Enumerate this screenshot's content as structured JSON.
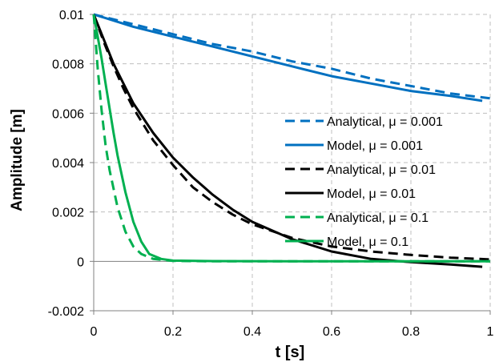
{
  "chart_data": {
    "type": "line",
    "xlabel": "t [s]",
    "ylabel": "Amplitude [m]",
    "xlim": [
      0,
      1
    ],
    "ylim": [
      -0.002,
      0.01
    ],
    "x_ticks": [
      0,
      0.2,
      0.4,
      0.6,
      0.8,
      1
    ],
    "x_tick_labels": [
      "0",
      "0.2",
      "0.4",
      "0.6",
      "0.8",
      "1"
    ],
    "y_ticks": [
      -0.002,
      0,
      0.002,
      0.004,
      0.006,
      0.008,
      0.01
    ],
    "y_tick_labels": [
      "-0.002",
      "0",
      "0.002",
      "0.004",
      "0.006",
      "0.008",
      "0.01"
    ],
    "grid": true,
    "legend_position": "right",
    "series": [
      {
        "name": "Analytical, μ = 0.001",
        "color": "#0070C0",
        "style": "dashed",
        "x": [
          0,
          0.1,
          0.2,
          0.3,
          0.4,
          0.5,
          0.6,
          0.7,
          0.8,
          0.9,
          1.0
        ],
        "y": [
          0.01,
          0.0096,
          0.0092,
          0.0088,
          0.0085,
          0.0081,
          0.0078,
          0.0074,
          0.0071,
          0.0068,
          0.0066
        ]
      },
      {
        "name": "Model, μ = 0.001",
        "color": "#0070C0",
        "style": "solid",
        "x": [
          0,
          0.1,
          0.2,
          0.3,
          0.4,
          0.5,
          0.6,
          0.7,
          0.8,
          0.9,
          0.98
        ],
        "y": [
          0.01,
          0.0095,
          0.0091,
          0.0087,
          0.0083,
          0.0079,
          0.0075,
          0.0072,
          0.0069,
          0.0067,
          0.0065
        ]
      },
      {
        "name": "Analytical, μ = 0.01",
        "color": "#000000",
        "style": "dashed",
        "x": [
          0,
          0.025,
          0.05,
          0.075,
          0.1,
          0.15,
          0.2,
          0.25,
          0.3,
          0.35,
          0.4,
          0.5,
          0.6,
          0.7,
          0.8,
          0.9,
          1.0
        ],
        "y": [
          0.01,
          0.0089,
          0.0079,
          0.007,
          0.0062,
          0.0049,
          0.0039,
          0.003,
          0.0024,
          0.0019,
          0.0015,
          0.00095,
          0.0006,
          0.0004,
          0.00026,
          0.00015,
          8e-05
        ]
      },
      {
        "name": "Model, μ = 0.01",
        "color": "#000000",
        "style": "solid",
        "x": [
          0,
          0.025,
          0.05,
          0.075,
          0.1,
          0.15,
          0.2,
          0.25,
          0.3,
          0.35,
          0.4,
          0.5,
          0.6,
          0.7,
          0.8,
          0.9,
          0.98
        ],
        "y": [
          0.01,
          0.009,
          0.008,
          0.0072,
          0.0064,
          0.0052,
          0.0042,
          0.0034,
          0.0027,
          0.0021,
          0.0016,
          0.0009,
          0.0004,
          0.0001,
          -3e-05,
          -0.00013,
          -0.00022
        ]
      },
      {
        "name": "Analytical, μ = 0.1",
        "color": "#00B050",
        "style": "dashed",
        "x": [
          0,
          0.01,
          0.02,
          0.03,
          0.04,
          0.06,
          0.08,
          0.1,
          0.12,
          0.15,
          0.2,
          0.3,
          0.5,
          0.7,
          1.0
        ],
        "y": [
          0.01,
          0.0078,
          0.0061,
          0.0047,
          0.0037,
          0.0022,
          0.0012,
          0.0006,
          0.0003,
          0.0001,
          2e-05,
          0.0,
          0.0,
          0.0,
          0.0
        ]
      },
      {
        "name": "Model, μ = 0.1",
        "color": "#00B050",
        "style": "solid",
        "x": [
          0,
          0.01,
          0.02,
          0.03,
          0.04,
          0.05,
          0.06,
          0.08,
          0.1,
          0.12,
          0.14,
          0.17,
          0.2,
          0.3,
          0.5,
          0.7,
          1.0
        ],
        "y": [
          0.01,
          0.0091,
          0.0082,
          0.0072,
          0.0062,
          0.0052,
          0.0043,
          0.0028,
          0.0016,
          0.0008,
          0.0003,
          0.0001,
          3e-05,
          1e-05,
          0.0,
          0.0,
          0.0
        ]
      }
    ]
  }
}
